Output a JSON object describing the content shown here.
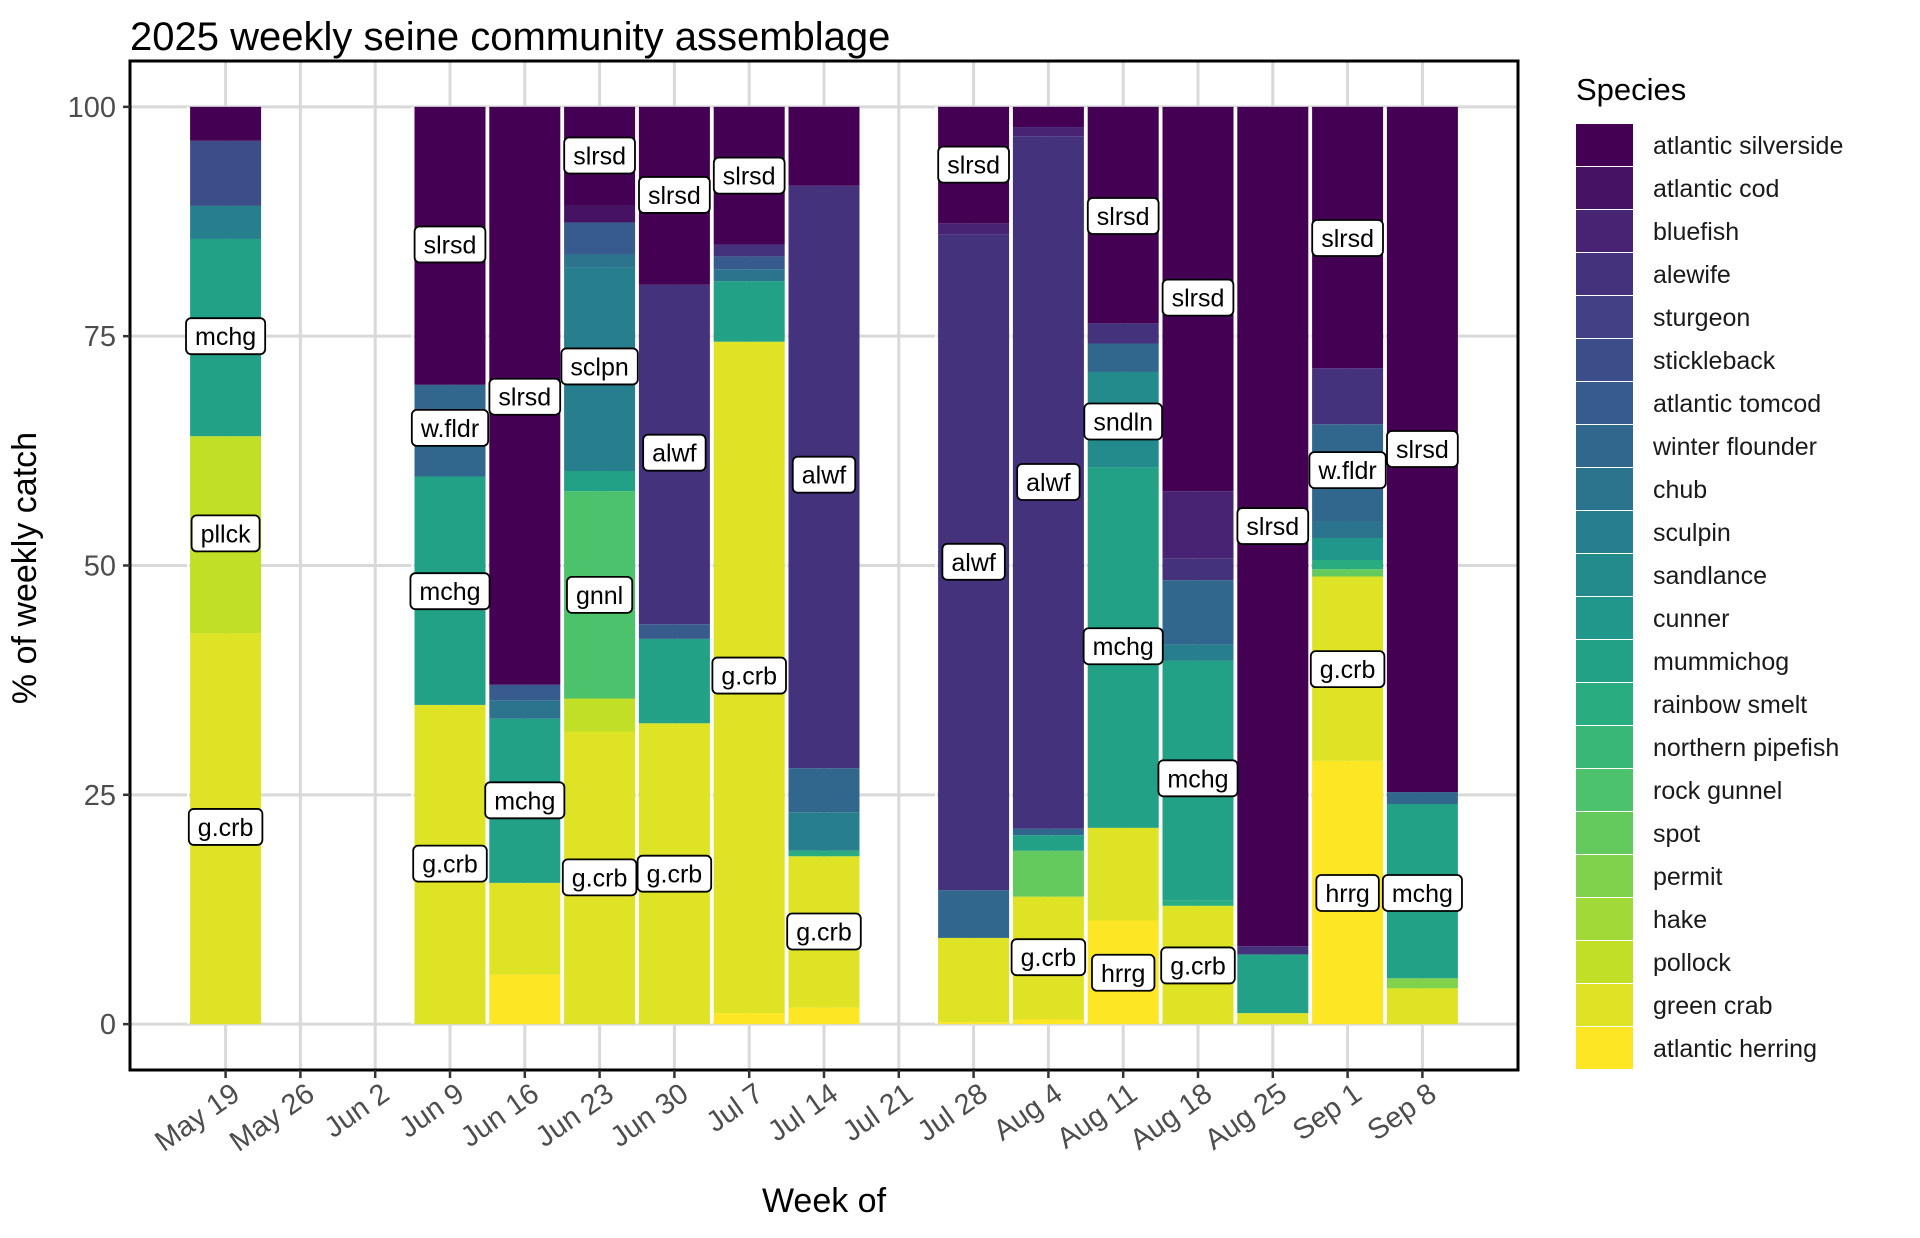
{
  "chart_data": {
    "type": "bar",
    "stacked": true,
    "title": "2025 weekly seine community assemblage",
    "xlabel": "Week of",
    "ylabel": "% of weekly catch",
    "ylim": [
      -5,
      105
    ],
    "yticks": [
      0,
      25,
      50,
      75,
      100
    ],
    "grid": true,
    "legend_title": "Species",
    "legend_position": "right",
    "categories": [
      "May 19",
      "May 26",
      "Jun 2",
      "Jun 9",
      "Jun 16",
      "Jun 23",
      "Jun 30",
      "Jul 7",
      "Jul 14",
      "Jul 21",
      "Jul 28",
      "Aug 4",
      "Aug 11",
      "Aug 18",
      "Aug 25",
      "Sep 1",
      "Sep 8"
    ],
    "species": [
      {
        "name": "atlantic silverside",
        "color": "#440154"
      },
      {
        "name": "atlantic cod",
        "color": "#461264"
      },
      {
        "name": "bluefish",
        "color": "#482374"
      },
      {
        "name": "alewife",
        "color": "#45327D"
      },
      {
        "name": "sturgeon",
        "color": "#424185"
      },
      {
        "name": "stickleback",
        "color": "#3C4E89"
      },
      {
        "name": "atlantic tomcod",
        "color": "#375B8C"
      },
      {
        "name": "winter flounder",
        "color": "#31678D"
      },
      {
        "name": "chub",
        "color": "#2C738E"
      },
      {
        "name": "sculpin",
        "color": "#277F8D"
      },
      {
        "name": "sandlance",
        "color": "#238B8C"
      },
      {
        "name": "cunner",
        "color": "#21968A"
      },
      {
        "name": "mummichog",
        "color": "#22A186"
      },
      {
        "name": "rainbow smelt",
        "color": "#28AC80"
      },
      {
        "name": "northern pipefish",
        "color": "#39B777"
      },
      {
        "name": "rock gunnel",
        "color": "#4CC26C"
      },
      {
        "name": "spot",
        "color": "#65CA5D"
      },
      {
        "name": "permit",
        "color": "#80D24D"
      },
      {
        "name": "hake",
        "color": "#A0D938"
      },
      {
        "name": "pollock",
        "color": "#C0DF26"
      },
      {
        "name": "green crab",
        "color": "#DFE325"
      },
      {
        "name": "atlantic herring",
        "color": "#FDE725"
      }
    ],
    "weeks": [
      {
        "week": "May 19",
        "values": {
          "green crab": 42.6,
          "pollock": 21.5,
          "mummichog": 21.5,
          "sculpin": 3.6,
          "stickleback": 7.1,
          "atlantic silverside": 3.7
        }
      },
      {
        "week": "May 26",
        "values": {}
      },
      {
        "week": "Jun 2",
        "values": {}
      },
      {
        "week": "Jun 9",
        "values": {
          "green crab": 34.8,
          "mummichog": 24.9,
          "winter flounder": 10.0,
          "atlantic silverside": 30.3
        }
      },
      {
        "week": "Jun 16",
        "values": {
          "atlantic herring": 5.4,
          "green crab": 10.0,
          "mummichog": 17.9,
          "chub": 2.0,
          "atlantic tomcod": 1.7,
          "atlantic silverside": 63.0
        }
      },
      {
        "week": "Jun 23",
        "values": {
          "green crab": 31.9,
          "pollock": 3.6,
          "rock gunnel": 22.6,
          "mummichog": 2.2,
          "sculpin": 22.2,
          "chub": 1.4,
          "atlantic tomcod": 3.5,
          "atlantic cod": 1.9,
          "atlantic silverside": 10.7
        }
      },
      {
        "week": "Jun 30",
        "values": {
          "green crab": 32.8,
          "mummichog": 9.2,
          "atlantic tomcod": 1.6,
          "alewife": 37.0,
          "atlantic silverside": 19.4
        }
      },
      {
        "week": "Jul 7",
        "values": {
          "atlantic herring": 1.2,
          "green crab": 73.2,
          "mummichog": 6.6,
          "chub": 1.3,
          "atlantic tomcod": 1.4,
          "alewife": 1.3,
          "atlantic silverside": 15.0
        }
      },
      {
        "week": "Jul 14",
        "values": {
          "atlantic herring": 1.8,
          "green crab": 16.5,
          "rainbow smelt": 0.6,
          "sculpin": 4.2,
          "winter flounder": 4.8,
          "alewife": 63.5,
          "atlantic silverside": 8.6
        }
      },
      {
        "week": "Jul 21",
        "values": {}
      },
      {
        "week": "Jul 28",
        "values": {
          "atlantic herring": 0.2,
          "green crab": 9.2,
          "winter flounder": 5.2,
          "alewife": 71.5,
          "bluefish": 1.2,
          "atlantic silverside": 12.7
        }
      },
      {
        "week": "Aug 4",
        "values": {
          "atlantic herring": 0.5,
          "green crab": 13.4,
          "spot": 5.0,
          "mummichog": 1.7,
          "winter flounder": 0.7,
          "alewife": 75.5,
          "bluefish": 1.0,
          "atlantic silverside": 2.2
        }
      },
      {
        "week": "Aug 11",
        "values": {
          "atlantic herring": 11.3,
          "green crab": 10.1,
          "mummichog": 39.3,
          "sandlance": 10.4,
          "winter flounder": 3.1,
          "alewife": 2.2,
          "atlantic silverside": 23.6
        }
      },
      {
        "week": "Aug 18",
        "values": {
          "green crab": 12.9,
          "rainbow smelt": 0.6,
          "mummichog": 26.1,
          "sculpin": 1.8,
          "winter flounder": 7.0,
          "alewife": 2.4,
          "bluefish": 7.3,
          "atlantic silverside": 41.9
        }
      },
      {
        "week": "Aug 25",
        "values": {
          "green crab": 1.2,
          "mummichog": 6.4,
          "alewife": 0.9,
          "atlantic silverside": 91.5
        }
      },
      {
        "week": "Sep 1",
        "values": {
          "atlantic herring": 28.7,
          "green crab": 20.1,
          "spot": 0.8,
          "rainbow smelt": 1.0,
          "cunner": 2.4,
          "chub": 1.8,
          "winter flounder": 10.6,
          "alewife": 6.1,
          "atlantic silverside": 28.5
        }
      },
      {
        "week": "Sep 8",
        "values": {
          "green crab": 3.9,
          "permit": 1.1,
          "mummichog": 19.0,
          "winter flounder": 1.3,
          "atlantic silverside": 74.7
        }
      }
    ],
    "annotations": [
      {
        "week": "May 19",
        "text": "mchg",
        "y": 75
      },
      {
        "week": "May 19",
        "text": "pllck",
        "y": 53.5
      },
      {
        "week": "May 19",
        "text": "g.crb",
        "y": 21.5
      },
      {
        "week": "Jun 9",
        "text": "slrsd",
        "y": 85
      },
      {
        "week": "Jun 9",
        "text": "w.fldr",
        "y": 65
      },
      {
        "week": "Jun 9",
        "text": "mchg",
        "y": 47.2
      },
      {
        "week": "Jun 9",
        "text": "g.crb",
        "y": 17.5
      },
      {
        "week": "Jun 16",
        "text": "slrsd",
        "y": 68.4
      },
      {
        "week": "Jun 16",
        "text": "mchg",
        "y": 24.4
      },
      {
        "week": "Jun 23",
        "text": "slrsd",
        "y": 94.7
      },
      {
        "week": "Jun 23",
        "text": "sclpn",
        "y": 71.7
      },
      {
        "week": "Jun 23",
        "text": "gnnl",
        "y": 46.8
      },
      {
        "week": "Jun 23",
        "text": "g.crb",
        "y": 16
      },
      {
        "week": "Jun 30",
        "text": "slrsd",
        "y": 90.4
      },
      {
        "week": "Jun 30",
        "text": "alwf",
        "y": 62.3
      },
      {
        "week": "Jun 30",
        "text": "g.crb",
        "y": 16.4
      },
      {
        "week": "Jul 7",
        "text": "slrsd",
        "y": 92.5
      },
      {
        "week": "Jul 7",
        "text": "g.crb",
        "y": 38
      },
      {
        "week": "Jul 14",
        "text": "alwf",
        "y": 59.9
      },
      {
        "week": "Jul 14",
        "text": "g.crb",
        "y": 10.1
      },
      {
        "week": "Jul 28",
        "text": "slrsd",
        "y": 93.7
      },
      {
        "week": "Jul 28",
        "text": "alwf",
        "y": 50.4
      },
      {
        "week": "Aug 4",
        "text": "alwf",
        "y": 59.1
      },
      {
        "week": "Aug 4",
        "text": "g.crb",
        "y": 7.3
      },
      {
        "week": "Aug 11",
        "text": "slrsd",
        "y": 88.1
      },
      {
        "week": "Aug 11",
        "text": "sndln",
        "y": 65.7
      },
      {
        "week": "Aug 11",
        "text": "mchg",
        "y": 41.2
      },
      {
        "week": "Aug 11",
        "text": "hrrg",
        "y": 5.6
      },
      {
        "week": "Aug 18",
        "text": "slrsd",
        "y": 79.2
      },
      {
        "week": "Aug 18",
        "text": "mchg",
        "y": 26.8
      },
      {
        "week": "Aug 18",
        "text": "g.crb",
        "y": 6.4
      },
      {
        "week": "Aug 25",
        "text": "slrsd",
        "y": 54.3
      },
      {
        "week": "Sep 1",
        "text": "slrsd",
        "y": 85.7
      },
      {
        "week": "Sep 1",
        "text": "w.fldr",
        "y": 60.4
      },
      {
        "week": "Sep 1",
        "text": "g.crb",
        "y": 38.7
      },
      {
        "week": "Sep 1",
        "text": "hrrg",
        "y": 14.3
      },
      {
        "week": "Sep 8",
        "text": "slrsd",
        "y": 62.7
      },
      {
        "week": "Sep 8",
        "text": "mchg",
        "y": 14.3
      }
    ]
  }
}
